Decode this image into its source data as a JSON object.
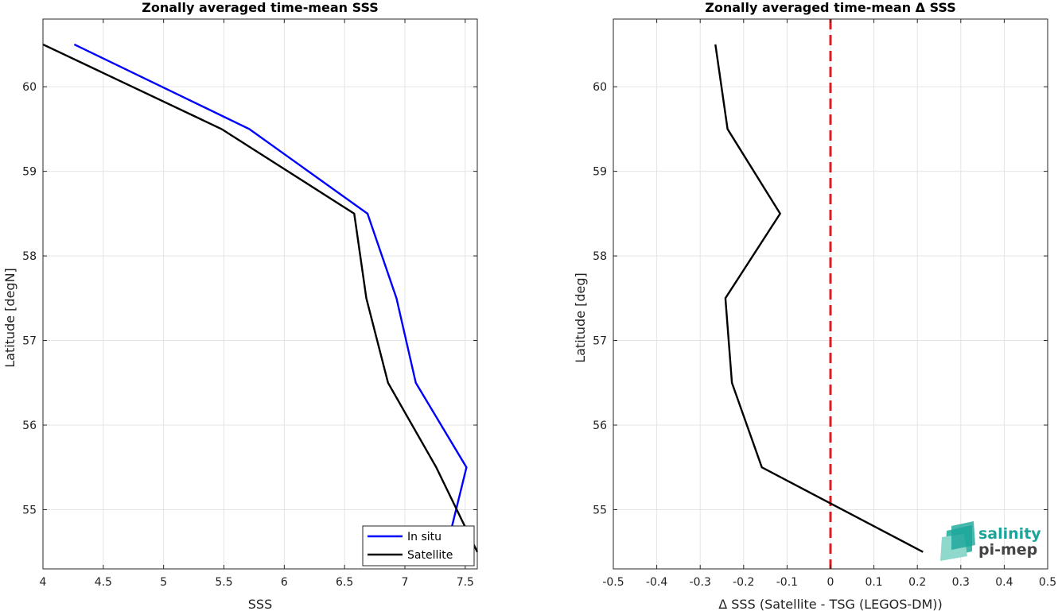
{
  "chart_data": [
    {
      "type": "line",
      "title": "Zonally averaged time-mean SSS",
      "xlabel": "SSS",
      "ylabel": "Latitude [degN]",
      "xlim": [
        4,
        7.6
      ],
      "ylim": [
        54.3,
        60.8
      ],
      "xticks": [
        4,
        4.5,
        5,
        5.5,
        6,
        6.5,
        7,
        7.5
      ],
      "xtick_labels": [
        "4",
        "4.5",
        "5",
        "5.5",
        "6",
        "6.5",
        "7",
        "7.5"
      ],
      "yticks": [
        55,
        56,
        57,
        58,
        59,
        60
      ],
      "ytick_labels": [
        "55",
        "56",
        "57",
        "58",
        "59",
        "60"
      ],
      "grid": true,
      "legend_position": "bottom-right",
      "series": [
        {
          "name": "In situ",
          "color": "#0000ff",
          "points": [
            [
              4.26,
              60.5
            ],
            [
              5.71,
              59.5
            ],
            [
              6.69,
              58.5
            ],
            [
              6.93,
              57.5
            ],
            [
              7.09,
              56.5
            ],
            [
              7.51,
              55.5
            ],
            [
              7.39,
              54.8
            ]
          ]
        },
        {
          "name": "Satellite",
          "color": "#000000",
          "points": [
            [
              4.0,
              60.5
            ],
            [
              5.48,
              59.5
            ],
            [
              6.58,
              58.5
            ],
            [
              6.68,
              57.5
            ],
            [
              6.86,
              56.5
            ],
            [
              7.26,
              55.5
            ],
            [
              7.6,
              54.5
            ]
          ]
        }
      ]
    },
    {
      "type": "line",
      "title": "Zonally averaged time-mean Δ SSS",
      "xlabel": "Δ SSS (Satellite - TSG (LEGOS-DM))",
      "ylabel": "Latitude [deg]",
      "xlim": [
        -0.5,
        0.5
      ],
      "ylim": [
        54.3,
        60.8
      ],
      "xticks": [
        -0.5,
        -0.4,
        -0.3,
        -0.2,
        -0.1,
        0,
        0.1,
        0.2,
        0.3,
        0.4,
        0.5
      ],
      "xtick_labels": [
        "-0.5",
        "-0.4",
        "-0.3",
        "-0.2",
        "-0.1",
        "0",
        "0.1",
        "0.2",
        "0.3",
        "0.4",
        "0.5"
      ],
      "yticks": [
        55,
        56,
        57,
        58,
        59,
        60
      ],
      "ytick_labels": [
        "55",
        "56",
        "57",
        "58",
        "59",
        "60"
      ],
      "grid": true,
      "reference_line": {
        "x": 0,
        "color": "#e41a1c",
        "style": "dashed"
      },
      "series": [
        {
          "color": "#000000",
          "points": [
            [
              -0.265,
              60.5
            ],
            [
              -0.237,
              59.5
            ],
            [
              -0.116,
              58.5
            ],
            [
              -0.242,
              57.5
            ],
            [
              -0.227,
              56.5
            ],
            [
              -0.158,
              55.5
            ],
            [
              0.213,
              54.5
            ]
          ]
        }
      ]
    }
  ],
  "logo": {
    "line1": "salinity",
    "line2": "pi-mep"
  }
}
